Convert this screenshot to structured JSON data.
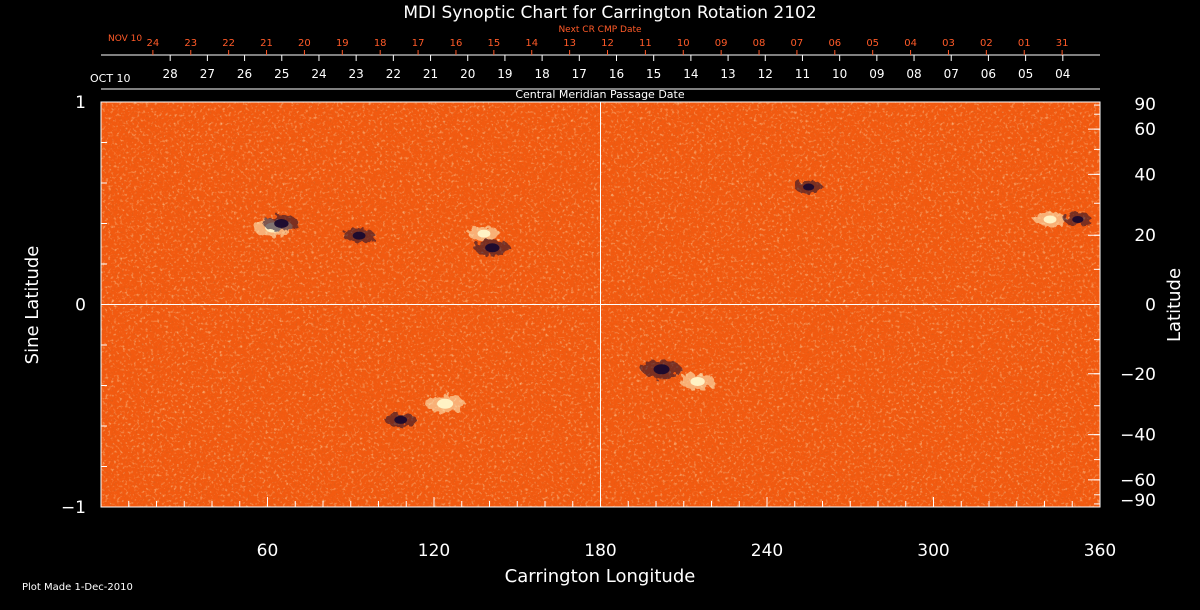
{
  "chart_data": {
    "type": "heatmap",
    "title": "MDI Synoptic Chart for Carrington Rotation 2102",
    "top_axis_label": "Next CR CMP Date",
    "middle_axis_label": "Central Meridian Passage Date",
    "xlabel": "Carrington Longitude",
    "ylabel_left": "Sine Latitude",
    "ylabel_right": "Latitude",
    "xlim": [
      0,
      360
    ],
    "ylim": [
      -1,
      1
    ],
    "x_ticks": [
      60,
      120,
      180,
      240,
      300,
      360
    ],
    "x_tick_labels": [
      "60",
      "120",
      "180",
      "240",
      "300",
      "360"
    ],
    "y_left_ticks": [
      1,
      0,
      -1
    ],
    "y_left_tick_labels": [
      "1",
      "0",
      "−1"
    ],
    "y_right_ticks_deg": [
      90,
      60,
      40,
      20,
      0,
      -20,
      -40,
      -60,
      -90
    ],
    "y_right_tick_labels": [
      "90",
      "60",
      "40",
      "20",
      "0",
      "−20",
      "−40",
      "−60",
      "−90"
    ],
    "next_cr_first_label": "NOV 10",
    "next_cr_dates": [
      "24",
      "23",
      "22",
      "21",
      "20",
      "19",
      "18",
      "17",
      "16",
      "15",
      "14",
      "13",
      "12",
      "11",
      "10",
      "09",
      "08",
      "07",
      "06",
      "05",
      "04",
      "03",
      "02",
      "01",
      "31"
    ],
    "cmp_first_label": "OCT 10",
    "cmp_dates": [
      "28",
      "27",
      "26",
      "25",
      "24",
      "23",
      "22",
      "21",
      "20",
      "19",
      "18",
      "17",
      "16",
      "15",
      "14",
      "13",
      "12",
      "11",
      "10",
      "09",
      "08",
      "07",
      "06",
      "05",
      "04"
    ],
    "grid_lines": {
      "vertical_longitude": 180,
      "horizontal_sine_latitude": 0
    },
    "colors": {
      "background": "#000000",
      "field_base": "#f25a10",
      "positive_polarity": "#fff6c8",
      "negative_polarity": "#1a0a2e",
      "date_red": "#ff5a28",
      "text": "#ffffff"
    },
    "active_regions": [
      {
        "longitude": 62,
        "sine_latitude": 0.38,
        "polarity": "positive",
        "strength": 1.0
      },
      {
        "longitude": 65,
        "sine_latitude": 0.4,
        "polarity": "negative",
        "strength": 0.9
      },
      {
        "longitude": 93,
        "sine_latitude": 0.34,
        "polarity": "negative",
        "strength": 0.8
      },
      {
        "longitude": 138,
        "sine_latitude": 0.35,
        "polarity": "positive",
        "strength": 0.8
      },
      {
        "longitude": 141,
        "sine_latitude": 0.28,
        "polarity": "negative",
        "strength": 0.9
      },
      {
        "longitude": 255,
        "sine_latitude": 0.58,
        "polarity": "negative",
        "strength": 0.7
      },
      {
        "longitude": 342,
        "sine_latitude": 0.42,
        "polarity": "positive",
        "strength": 0.8
      },
      {
        "longitude": 352,
        "sine_latitude": 0.42,
        "polarity": "negative",
        "strength": 0.7
      },
      {
        "longitude": 124,
        "sine_latitude": -0.49,
        "polarity": "positive",
        "strength": 1.0
      },
      {
        "longitude": 108,
        "sine_latitude": -0.57,
        "polarity": "negative",
        "strength": 0.8
      },
      {
        "longitude": 202,
        "sine_latitude": -0.32,
        "polarity": "negative",
        "strength": 1.0
      },
      {
        "longitude": 215,
        "sine_latitude": -0.38,
        "polarity": "positive",
        "strength": 0.9
      }
    ]
  },
  "footer": {
    "plot_made": "Plot Made  1-Dec-2010"
  }
}
